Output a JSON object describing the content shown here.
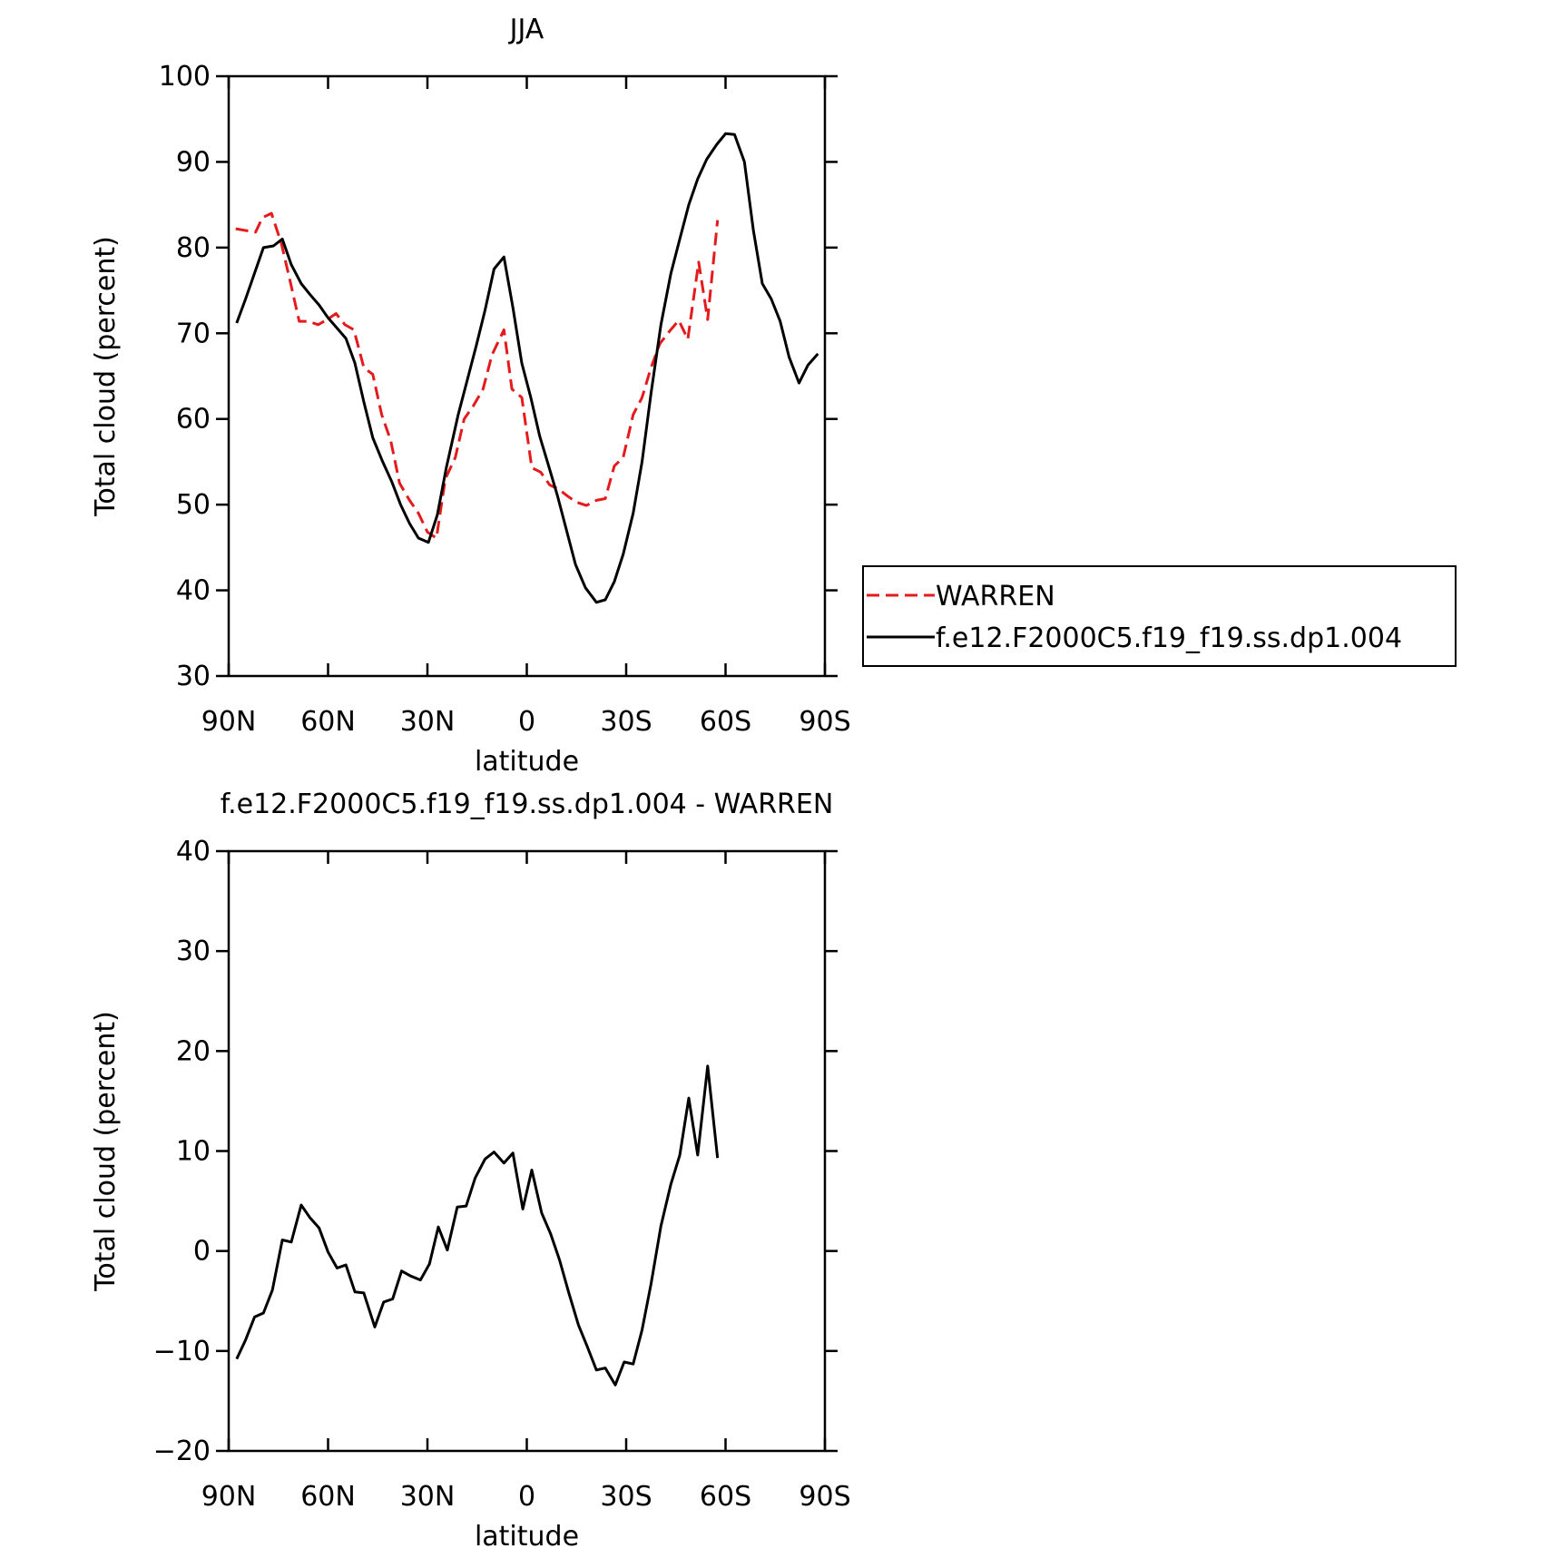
{
  "chart_data": [
    {
      "type": "line",
      "title": "JJA",
      "x_label": "latitude",
      "y_label": "Total cloud (percent)",
      "xlim": [
        90,
        -90
      ],
      "ylim": [
        30,
        100
      ],
      "xticks": [
        {
          "value": 90,
          "label": "90N"
        },
        {
          "value": 60,
          "label": "60N"
        },
        {
          "value": 30,
          "label": "30N"
        },
        0,
        {
          "value": -30,
          "label": "30S"
        },
        {
          "value": -60,
          "label": "60S"
        },
        {
          "value": -90,
          "label": "90S"
        }
      ],
      "yticks": [
        30,
        40,
        50,
        60,
        70,
        80,
        90,
        100
      ],
      "legend": "right",
      "series": [
        {
          "name": "WARREN",
          "color": "#e41a1c",
          "dash": true,
          "x": [
            87.9,
            81.9,
            79.8,
            77.1,
            74.1,
            71.4,
            68.7,
            66,
            63,
            60.3,
            57.6,
            54.9,
            52.2,
            49.2,
            46.5,
            43.8,
            41.1,
            38.4,
            35.4,
            32.7,
            30,
            27.3,
            24.6,
            21.6,
            18.9,
            16.2,
            13.2,
            10.5,
            6.9,
            4.5,
            1.5,
            -1.5,
            -4.2,
            -6.9,
            -9.6,
            -12.3,
            -14.9,
            -18,
            -21,
            -23.7,
            -26.4,
            -29.1,
            -32.1,
            -34.8,
            -37.5,
            -40.2,
            -43.2,
            -45.9,
            -48.6,
            -51.9,
            -54.6,
            -57.6
          ],
          "values": [
            82.2,
            81.8,
            83.5,
            84,
            80.5,
            76,
            71.4,
            71.4,
            71,
            71.6,
            72.3,
            71,
            70.4,
            66,
            65.2,
            60.5,
            57.5,
            52.5,
            50.5,
            49,
            46.8,
            46.1,
            53,
            55.5,
            60,
            61.5,
            63.5,
            67.5,
            70.4,
            63.5,
            62.5,
            54.3,
            53.8,
            52.3,
            51.8,
            51,
            50.3,
            49.9,
            50.5,
            50.7,
            54.5,
            55.5,
            60.5,
            62.5,
            66,
            68.8,
            70.3,
            71.5,
            69.3,
            78.3,
            71.6,
            83.2
          ]
        },
        {
          "name": "f.e12.F2000C5.f19_f19.ss.dp1.004",
          "color": "#000000",
          "dash": false,
          "x": [
            87.6,
            84.9,
            79.5,
            76.5,
            73.8,
            71.1,
            68.1,
            65.4,
            62.7,
            60,
            57.3,
            54.6,
            51.9,
            49.2,
            46.5,
            43.5,
            40.8,
            38.1,
            35.4,
            32.7,
            29.7,
            27,
            24.3,
            20.7,
            18,
            15.3,
            12.6,
            9.9,
            6.9,
            4.2,
            1.5,
            -1.2,
            -3.9,
            -6.6,
            -9.3,
            -12,
            -14.7,
            -17.7,
            -21,
            -23.7,
            -26.4,
            -29.1,
            -32.1,
            -34.8,
            -37.5,
            -40.5,
            -43.5,
            -46.2,
            -48.9,
            -51.6,
            -54.3,
            -57.3,
            -60,
            -62.7,
            -65.7,
            -68.4,
            -71.1,
            -73.8,
            -76.5,
            -79.2,
            -82.2,
            -84.9,
            -87.9
          ],
          "values": [
            71.2,
            74,
            80,
            80.2,
            81,
            78,
            75.8,
            74.5,
            73.3,
            71.8,
            70.6,
            69.4,
            66.5,
            62,
            57.8,
            55,
            52.7,
            50,
            47.8,
            46.1,
            45.6,
            48.8,
            54.3,
            60.5,
            64.5,
            68.5,
            72.7,
            77.5,
            78.9,
            73,
            66.5,
            62.5,
            58,
            54.5,
            51,
            47,
            43,
            40.3,
            38.6,
            38.9,
            41,
            44.2,
            49,
            55,
            63,
            71,
            77,
            81,
            85,
            88,
            90.3,
            92,
            93.3,
            93.2,
            90,
            82,
            75.8,
            74,
            71.4,
            67.2,
            64.2,
            66.3,
            67.6
          ]
        }
      ]
    },
    {
      "type": "line",
      "title": "f.e12.F2000C5.f19_f19.ss.dp1.004 - WARREN",
      "x_label": "latitude",
      "y_label": "Total cloud (percent)",
      "xlim": [
        90,
        -90
      ],
      "ylim": [
        -20,
        40
      ],
      "xticks": [
        {
          "value": 90,
          "label": "90N"
        },
        {
          "value": 60,
          "label": "60N"
        },
        {
          "value": 30,
          "label": "30N"
        },
        0,
        {
          "value": -30,
          "label": "30S"
        },
        {
          "value": -60,
          "label": "60S"
        },
        {
          "value": -90,
          "label": "90S"
        }
      ],
      "yticks": [
        {
          "value": -20,
          "label": "−20"
        },
        {
          "value": -10,
          "label": "−10"
        },
        0,
        10,
        20,
        30,
        40
      ],
      "series": [
        {
          "color": "#000000",
          "dash": false,
          "x": [
            87.6,
            84.9,
            82.2,
            79.5,
            76.8,
            73.8,
            71.1,
            68.1,
            65.4,
            62.7,
            60,
            57.3,
            54.6,
            51.9,
            49.2,
            45.9,
            43.2,
            40.5,
            37.8,
            35.1,
            32.1,
            29.4,
            26.7,
            24,
            21,
            18.3,
            15.6,
            12.6,
            9.9,
            6.9,
            4.2,
            1.2,
            -1.5,
            -4.5,
            -7.2,
            -9.9,
            -12.6,
            -15.6,
            -18.3,
            -21,
            -23.7,
            -26.7,
            -29.4,
            -32.1,
            -34.8,
            -37.5,
            -40.5,
            -43.5,
            -46.2,
            -48.9,
            -51.6,
            -54.6,
            -57.6
          ],
          "values": [
            -10.8,
            -8.9,
            -6.6,
            -6.2,
            -3.9,
            1.1,
            0.9,
            4.6,
            3.3,
            2.3,
            -0.1,
            -1.7,
            -1.4,
            -4.1,
            -4.2,
            -7.6,
            -5.1,
            -4.8,
            -2,
            -2.5,
            -2.9,
            -1.3,
            2.4,
            0.1,
            4.4,
            4.5,
            7.3,
            9.2,
            9.9,
            8.8,
            9.8,
            4.2,
            8.1,
            3.8,
            1.7,
            -0.9,
            -4.1,
            -7.4,
            -9.6,
            -11.9,
            -11.7,
            -13.4,
            -11.1,
            -11.3,
            -7.9,
            -3.3,
            2.5,
            6.7,
            9.6,
            15.3,
            9.6,
            18.5,
            9.3
          ]
        }
      ]
    }
  ]
}
